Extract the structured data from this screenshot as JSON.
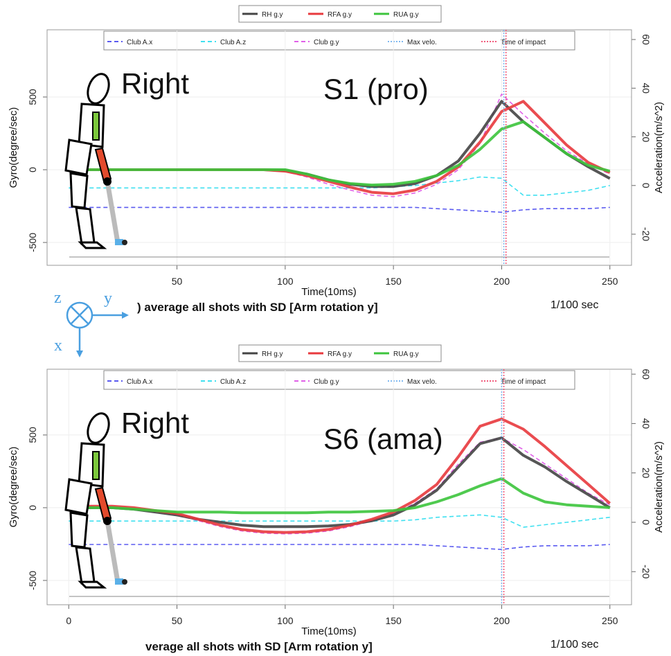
{
  "axes_icon": {
    "z": "z",
    "y": "y",
    "x": "x"
  },
  "chart_data": [
    {
      "type": "line",
      "label": "Right",
      "subject": "S1 (pro)",
      "caption": ") average all shots with SD [Arm rotation y]",
      "unit_note": "1/100 sec",
      "xlabel": "Time(10ms)",
      "ylabel": "Gyro(degree/sec)",
      "y2label": "Acceleration(m/s^2)",
      "x": [
        0,
        10,
        20,
        30,
        40,
        50,
        60,
        70,
        80,
        90,
        100,
        110,
        120,
        130,
        140,
        150,
        160,
        170,
        180,
        190,
        200,
        210,
        220,
        230,
        240,
        250
      ],
      "xlim": [
        -10,
        260
      ],
      "xticks": [
        50,
        100,
        150,
        200,
        250
      ],
      "ylim": [
        -657,
        962
      ],
      "yticks": [
        -500,
        0,
        500
      ],
      "y2lim": [
        -32.8,
        64
      ],
      "y2ticks": [
        -20,
        0,
        20,
        40,
        60
      ],
      "grid": true,
      "series": [
        {
          "name": "RH g.y",
          "color": "#444444",
          "values": [
            0,
            0,
            0,
            0,
            0,
            0,
            0,
            0,
            0,
            0,
            -5,
            -30,
            -70,
            -100,
            -115,
            -115,
            -95,
            -40,
            60,
            250,
            470,
            330,
            220,
            110,
            20,
            -60
          ]
        },
        {
          "name": "RFA g.y",
          "color": "#e8393d",
          "values": [
            0,
            0,
            0,
            0,
            0,
            0,
            0,
            0,
            0,
            0,
            -10,
            -40,
            -80,
            -120,
            -155,
            -165,
            -140,
            -80,
            20,
            190,
            400,
            470,
            320,
            170,
            50,
            -20
          ]
        },
        {
          "name": "RUA g.y",
          "color": "#3cc43c",
          "values": [
            0,
            0,
            0,
            0,
            0,
            0,
            0,
            0,
            0,
            0,
            0,
            -30,
            -70,
            -95,
            -105,
            -100,
            -80,
            -40,
            30,
            140,
            280,
            330,
            220,
            110,
            30,
            -10
          ]
        }
      ],
      "club_series": [
        {
          "name": "Club A.x",
          "color": "#5a5af0",
          "axis": "y2",
          "values": [
            -9,
            -9,
            -9,
            -9,
            -9,
            -9,
            -9,
            -9,
            -9,
            -9,
            -9,
            -9,
            -9,
            -9,
            -9,
            -9,
            -9,
            -9.5,
            -10,
            -10.5,
            -11,
            -10,
            -9.5,
            -9.5,
            -9.5,
            -9
          ]
        },
        {
          "name": "Club A.z",
          "color": "#40e0f0",
          "axis": "y2",
          "values": [
            -1,
            -1,
            -1,
            -1,
            -1,
            -1,
            -1,
            -1,
            -1,
            -1,
            -1,
            -1,
            -1,
            -1,
            -1,
            -0.5,
            0,
            1,
            2,
            3.5,
            3,
            -4,
            -4,
            -3,
            -2,
            0
          ]
        },
        {
          "name": "Club g.y",
          "color": "#e060e8",
          "values": [
            0,
            0,
            0,
            0,
            0,
            0,
            0,
            0,
            0,
            0,
            -10,
            -50,
            -100,
            -140,
            -175,
            -185,
            -160,
            -100,
            0,
            180,
            520,
            380,
            250,
            130,
            40,
            -30
          ]
        }
      ],
      "vlines": [
        {
          "name": "Max velo.",
          "color": "#7fb8f0",
          "x": 201
        },
        {
          "name": "Time of impact",
          "color": "#f05a7a",
          "x": 202
        }
      ]
    },
    {
      "type": "line",
      "label": "Right",
      "subject": "S6 (ama)",
      "caption": "verage all shots with SD [Arm rotation y]",
      "unit_note": "1/100 sec",
      "xlabel": "Time(10ms)",
      "ylabel": "Gyro(degree/sec)",
      "y2label": "Acceleration(m/s^2)",
      "x": [
        0,
        10,
        20,
        30,
        40,
        50,
        60,
        70,
        80,
        90,
        100,
        110,
        120,
        130,
        140,
        150,
        160,
        170,
        180,
        190,
        200,
        210,
        220,
        230,
        240,
        250
      ],
      "xlim": [
        -10,
        260
      ],
      "xticks": [
        0,
        50,
        100,
        150,
        200,
        250
      ],
      "ylim": [
        -667,
        952
      ],
      "yticks": [
        -500,
        0,
        500
      ],
      "y2lim": [
        -33.4,
        62
      ],
      "y2ticks": [
        -20,
        0,
        20,
        40,
        60
      ],
      "grid": true,
      "series": [
        {
          "name": "RH g.y",
          "color": "#444444",
          "values": [
            0,
            0,
            0,
            -10,
            -30,
            -50,
            -80,
            -100,
            -120,
            -130,
            -130,
            -130,
            -125,
            -115,
            -90,
            -50,
            20,
            120,
            280,
            440,
            480,
            360,
            280,
            180,
            90,
            0
          ]
        },
        {
          "name": "RFA g.y",
          "color": "#e8393d",
          "values": [
            10,
            10,
            10,
            0,
            -20,
            -40,
            -80,
            -120,
            -150,
            -165,
            -170,
            -165,
            -150,
            -120,
            -80,
            -30,
            50,
            160,
            350,
            560,
            610,
            540,
            420,
            290,
            160,
            30
          ]
        },
        {
          "name": "RUA g.y",
          "color": "#3cc43c",
          "values": [
            0,
            0,
            0,
            -10,
            -20,
            -30,
            -30,
            -30,
            -35,
            -35,
            -35,
            -35,
            -30,
            -30,
            -25,
            -20,
            0,
            40,
            90,
            150,
            200,
            100,
            40,
            20,
            10,
            0
          ]
        }
      ],
      "club_series": [
        {
          "name": "Club A.x",
          "color": "#5a5af0",
          "axis": "y2",
          "values": [
            -9,
            -9,
            -9,
            -9,
            -9,
            -9,
            -9,
            -9,
            -9,
            -9,
            -9,
            -9,
            -9,
            -9,
            -9,
            -9,
            -9,
            -9.5,
            -10,
            -10.5,
            -11,
            -10,
            -9.5,
            -9.5,
            -9.5,
            -9
          ]
        },
        {
          "name": "Club A.z",
          "color": "#40e0f0",
          "axis": "y2",
          "values": [
            0.5,
            0.5,
            0.5,
            0.5,
            0.5,
            0.5,
            0.5,
            0.5,
            0.5,
            0.5,
            0.5,
            0.5,
            0.5,
            0.5,
            0.5,
            0.5,
            1,
            2,
            2.5,
            3,
            2,
            -2,
            -1,
            0,
            1,
            2
          ]
        },
        {
          "name": "Club g.y",
          "color": "#e060e8",
          "values": [
            10,
            10,
            0,
            -10,
            -30,
            -50,
            -90,
            -130,
            -160,
            -175,
            -180,
            -175,
            -160,
            -130,
            -90,
            -40,
            30,
            130,
            300,
            450,
            480,
            400,
            300,
            200,
            100,
            20
          ]
        }
      ],
      "vlines": [
        {
          "name": "Max velo.",
          "color": "#7fb8f0",
          "x": 200
        },
        {
          "name": "Time of impact",
          "color": "#f05a7a",
          "x": 201
        }
      ]
    }
  ]
}
